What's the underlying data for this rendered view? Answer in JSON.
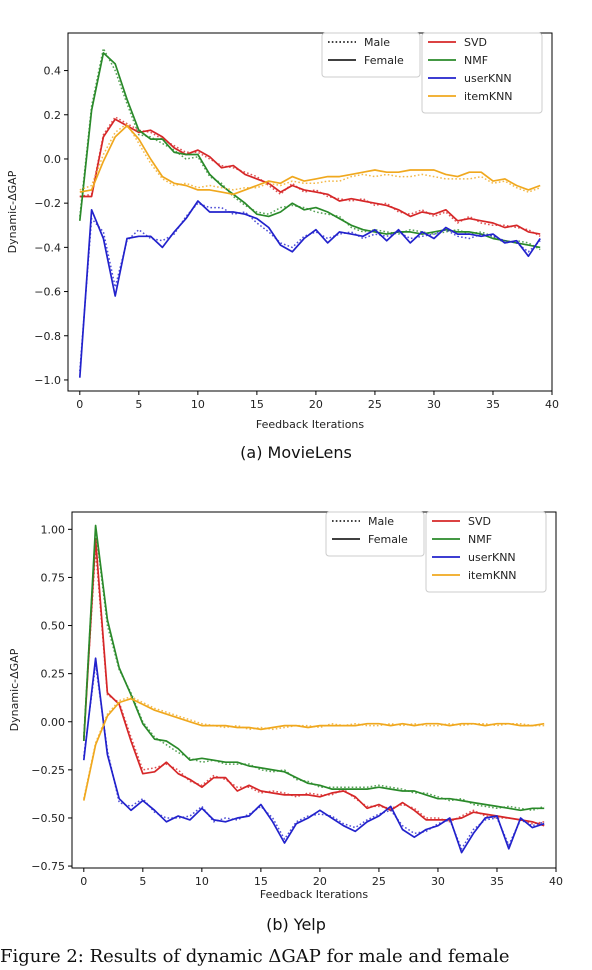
{
  "figure_caption": "Figure 2: Results of dynamic ΔGAP for male and female",
  "colors": {
    "SVD": "#d62728",
    "NMF": "#2a8a2a",
    "userKNN": "#2222cc",
    "itemKNN": "#f0a81e"
  },
  "legend": {
    "style": [
      {
        "name": "Male",
        "dash": "dotted"
      },
      {
        "name": "Female",
        "dash": "solid"
      }
    ],
    "models": [
      "SVD",
      "NMF",
      "userKNN",
      "itemKNN"
    ]
  },
  "chart_data": [
    {
      "type": "line",
      "caption": "(a) MovieLens",
      "xlabel": "Feedback Iterations",
      "ylabel": "Dynamic-ΔGAP",
      "xlim": [
        -1,
        40
      ],
      "ylim": [
        -1.05,
        0.57
      ],
      "xticks": [
        0,
        5,
        10,
        15,
        20,
        25,
        30,
        35,
        40
      ],
      "yticks": [
        -1.0,
        -0.8,
        -0.6,
        -0.4,
        -0.2,
        0.0,
        0.2,
        0.4
      ],
      "ytick_labels": [
        "−1.0",
        "−0.8",
        "−0.6",
        "−0.4",
        "−0.2",
        "0.0",
        "0.2",
        "0.4"
      ],
      "legend_placement": "top-right",
      "series": [
        {
          "name": "SVD",
          "sex": "Female",
          "values": [
            -0.17,
            -0.17,
            0.1,
            0.18,
            0.15,
            0.12,
            0.13,
            0.1,
            0.05,
            0.02,
            0.04,
            0.01,
            -0.04,
            -0.03,
            -0.07,
            -0.09,
            -0.11,
            -0.15,
            -0.12,
            -0.14,
            -0.15,
            -0.16,
            -0.19,
            -0.18,
            -0.19,
            -0.2,
            -0.21,
            -0.23,
            -0.26,
            -0.24,
            -0.25,
            -0.23,
            -0.28,
            -0.27,
            -0.28,
            -0.29,
            -0.31,
            -0.3,
            -0.33,
            -0.34
          ]
        },
        {
          "name": "SVD",
          "sex": "Male",
          "values": [
            -0.17,
            -0.16,
            0.11,
            0.19,
            0.16,
            0.13,
            0.12,
            0.09,
            0.06,
            0.03,
            0.03,
            0.0,
            -0.03,
            -0.04,
            -0.06,
            -0.08,
            -0.12,
            -0.16,
            -0.11,
            -0.15,
            -0.14,
            -0.17,
            -0.18,
            -0.19,
            -0.18,
            -0.21,
            -0.2,
            -0.24,
            -0.25,
            -0.23,
            -0.26,
            -0.24,
            -0.29,
            -0.26,
            -0.29,
            -0.3,
            -0.3,
            -0.31,
            -0.32,
            -0.35
          ]
        },
        {
          "name": "NMF",
          "sex": "Female",
          "values": [
            -0.28,
            0.22,
            0.48,
            0.43,
            0.27,
            0.13,
            0.09,
            0.09,
            0.03,
            0.02,
            0.02,
            -0.07,
            -0.12,
            -0.16,
            -0.2,
            -0.25,
            -0.26,
            -0.24,
            -0.2,
            -0.23,
            -0.22,
            -0.24,
            -0.27,
            -0.3,
            -0.32,
            -0.33,
            -0.34,
            -0.33,
            -0.33,
            -0.34,
            -0.33,
            -0.32,
            -0.33,
            -0.33,
            -0.34,
            -0.36,
            -0.37,
            -0.38,
            -0.39,
            -0.4
          ]
        },
        {
          "name": "NMF",
          "sex": "Male",
          "values": [
            -0.26,
            0.24,
            0.5,
            0.4,
            0.25,
            0.11,
            0.1,
            0.07,
            0.04,
            0.0,
            0.01,
            -0.08,
            -0.11,
            -0.17,
            -0.21,
            -0.24,
            -0.25,
            -0.22,
            -0.21,
            -0.22,
            -0.24,
            -0.25,
            -0.26,
            -0.31,
            -0.33,
            -0.32,
            -0.33,
            -0.34,
            -0.32,
            -0.33,
            -0.34,
            -0.33,
            -0.32,
            -0.34,
            -0.33,
            -0.35,
            -0.38,
            -0.37,
            -0.38,
            -0.41
          ]
        },
        {
          "name": "userKNN",
          "sex": "Female",
          "values": [
            -0.99,
            -0.23,
            -0.36,
            -0.62,
            -0.36,
            -0.35,
            -0.35,
            -0.4,
            -0.33,
            -0.27,
            -0.19,
            -0.24,
            -0.24,
            -0.24,
            -0.25,
            -0.27,
            -0.31,
            -0.39,
            -0.42,
            -0.36,
            -0.32,
            -0.38,
            -0.33,
            -0.34,
            -0.35,
            -0.32,
            -0.37,
            -0.32,
            -0.38,
            -0.33,
            -0.36,
            -0.31,
            -0.34,
            -0.34,
            -0.35,
            -0.34,
            -0.38,
            -0.37,
            -0.44,
            -0.36
          ]
        },
        {
          "name": "userKNN",
          "sex": "Male",
          "values": [
            -0.96,
            -0.27,
            -0.33,
            -0.58,
            -0.37,
            -0.32,
            -0.36,
            -0.37,
            -0.34,
            -0.26,
            -0.2,
            -0.22,
            -0.22,
            -0.25,
            -0.24,
            -0.29,
            -0.33,
            -0.38,
            -0.4,
            -0.35,
            -0.33,
            -0.36,
            -0.34,
            -0.33,
            -0.36,
            -0.34,
            -0.35,
            -0.33,
            -0.36,
            -0.35,
            -0.34,
            -0.32,
            -0.35,
            -0.36,
            -0.34,
            -0.35,
            -0.37,
            -0.38,
            -0.42,
            -0.37
          ]
        },
        {
          "name": "itemKNN",
          "sex": "Female",
          "values": [
            -0.15,
            -0.14,
            -0.01,
            0.1,
            0.15,
            0.09,
            0.0,
            -0.08,
            -0.11,
            -0.12,
            -0.14,
            -0.14,
            -0.15,
            -0.16,
            -0.14,
            -0.12,
            -0.1,
            -0.11,
            -0.08,
            -0.1,
            -0.09,
            -0.08,
            -0.08,
            -0.07,
            -0.06,
            -0.05,
            -0.06,
            -0.06,
            -0.05,
            -0.05,
            -0.05,
            -0.07,
            -0.08,
            -0.06,
            -0.06,
            -0.1,
            -0.09,
            -0.12,
            -0.14,
            -0.12
          ]
        },
        {
          "name": "itemKNN",
          "sex": "Male",
          "values": [
            -0.14,
            -0.12,
            0.02,
            0.12,
            0.16,
            0.07,
            -0.02,
            -0.09,
            -0.12,
            -0.11,
            -0.13,
            -0.12,
            -0.13,
            -0.14,
            -0.13,
            -0.13,
            -0.11,
            -0.12,
            -0.1,
            -0.11,
            -0.11,
            -0.1,
            -0.1,
            -0.08,
            -0.07,
            -0.08,
            -0.07,
            -0.08,
            -0.08,
            -0.07,
            -0.08,
            -0.09,
            -0.09,
            -0.09,
            -0.08,
            -0.11,
            -0.1,
            -0.13,
            -0.15,
            -0.13
          ]
        }
      ]
    },
    {
      "type": "line",
      "caption": "(b) Yelp",
      "xlabel": "Feedback Iterations",
      "ylabel": "Dynamic-ΔGAP",
      "xlim": [
        -1,
        40
      ],
      "ylim": [
        -0.76,
        1.09
      ],
      "xticks": [
        0,
        5,
        10,
        15,
        20,
        25,
        30,
        35,
        40
      ],
      "yticks": [
        -0.75,
        -0.5,
        -0.25,
        0.0,
        0.25,
        0.5,
        0.75,
        1.0
      ],
      "ytick_labels": [
        "−0.75",
        "−0.50",
        "−0.25",
        "0.00",
        "0.25",
        "0.50",
        "0.75",
        "1.00"
      ],
      "legend_placement": "top-right",
      "series": [
        {
          "name": "SVD",
          "sex": "Female",
          "values": [
            -0.1,
            0.95,
            0.15,
            0.09,
            -0.1,
            -0.27,
            -0.26,
            -0.21,
            -0.27,
            -0.3,
            -0.34,
            -0.29,
            -0.29,
            -0.36,
            -0.33,
            -0.36,
            -0.37,
            -0.38,
            -0.38,
            -0.38,
            -0.39,
            -0.37,
            -0.36,
            -0.39,
            -0.45,
            -0.43,
            -0.46,
            -0.42,
            -0.46,
            -0.51,
            -0.51,
            -0.51,
            -0.5,
            -0.47,
            -0.48,
            -0.49,
            -0.5,
            -0.51,
            -0.52,
            -0.54
          ]
        },
        {
          "name": "SVD",
          "sex": "Male",
          "values": [
            -0.08,
            0.9,
            0.14,
            0.1,
            -0.08,
            -0.25,
            -0.24,
            -0.22,
            -0.25,
            -0.31,
            -0.33,
            -0.28,
            -0.3,
            -0.34,
            -0.34,
            -0.37,
            -0.36,
            -0.37,
            -0.39,
            -0.37,
            -0.38,
            -0.38,
            -0.35,
            -0.4,
            -0.44,
            -0.44,
            -0.45,
            -0.43,
            -0.45,
            -0.5,
            -0.5,
            -0.52,
            -0.49,
            -0.46,
            -0.49,
            -0.5,
            -0.5,
            -0.51,
            -0.53,
            -0.52
          ]
        },
        {
          "name": "NMF",
          "sex": "Female",
          "values": [
            -0.1,
            1.02,
            0.53,
            0.28,
            0.14,
            -0.01,
            -0.09,
            -0.1,
            -0.14,
            -0.2,
            -0.19,
            -0.2,
            -0.21,
            -0.21,
            -0.23,
            -0.24,
            -0.25,
            -0.26,
            -0.29,
            -0.32,
            -0.33,
            -0.35,
            -0.35,
            -0.35,
            -0.35,
            -0.34,
            -0.35,
            -0.36,
            -0.36,
            -0.38,
            -0.4,
            -0.4,
            -0.41,
            -0.42,
            -0.43,
            -0.44,
            -0.45,
            -0.46,
            -0.45,
            -0.45
          ]
        },
        {
          "name": "NMF",
          "sex": "Male",
          "values": [
            -0.08,
            1.0,
            0.5,
            0.27,
            0.15,
            0.0,
            -0.08,
            -0.12,
            -0.16,
            -0.19,
            -0.21,
            -0.2,
            -0.22,
            -0.22,
            -0.22,
            -0.25,
            -0.26,
            -0.25,
            -0.3,
            -0.31,
            -0.34,
            -0.34,
            -0.34,
            -0.34,
            -0.34,
            -0.33,
            -0.34,
            -0.35,
            -0.37,
            -0.37,
            -0.39,
            -0.41,
            -0.4,
            -0.43,
            -0.44,
            -0.45,
            -0.44,
            -0.45,
            -0.46,
            -0.44
          ]
        },
        {
          "name": "userKNN",
          "sex": "Female",
          "values": [
            -0.2,
            0.33,
            -0.17,
            -0.4,
            -0.46,
            -0.41,
            -0.46,
            -0.52,
            -0.49,
            -0.51,
            -0.45,
            -0.51,
            -0.52,
            -0.5,
            -0.49,
            -0.43,
            -0.52,
            -0.63,
            -0.53,
            -0.5,
            -0.46,
            -0.5,
            -0.54,
            -0.57,
            -0.52,
            -0.49,
            -0.44,
            -0.56,
            -0.6,
            -0.56,
            -0.54,
            -0.5,
            -0.68,
            -0.58,
            -0.5,
            -0.49,
            -0.66,
            -0.5,
            -0.55,
            -0.53
          ]
        },
        {
          "name": "userKNN",
          "sex": "Male",
          "values": [
            -0.18,
            0.3,
            -0.15,
            -0.42,
            -0.44,
            -0.4,
            -0.47,
            -0.5,
            -0.5,
            -0.49,
            -0.44,
            -0.52,
            -0.5,
            -0.51,
            -0.48,
            -0.44,
            -0.5,
            -0.61,
            -0.52,
            -0.49,
            -0.48,
            -0.49,
            -0.53,
            -0.55,
            -0.51,
            -0.48,
            -0.46,
            -0.54,
            -0.58,
            -0.57,
            -0.53,
            -0.51,
            -0.66,
            -0.56,
            -0.51,
            -0.5,
            -0.64,
            -0.51,
            -0.54,
            -0.52
          ]
        },
        {
          "name": "itemKNN",
          "sex": "Female",
          "values": [
            -0.41,
            -0.12,
            0.03,
            0.1,
            0.12,
            0.09,
            0.06,
            0.04,
            0.02,
            0.0,
            -0.02,
            -0.02,
            -0.02,
            -0.03,
            -0.03,
            -0.04,
            -0.03,
            -0.02,
            -0.02,
            -0.03,
            -0.02,
            -0.02,
            -0.02,
            -0.02,
            -0.01,
            -0.01,
            -0.02,
            -0.01,
            -0.02,
            -0.01,
            -0.01,
            -0.02,
            -0.01,
            -0.01,
            -0.02,
            -0.01,
            -0.01,
            -0.02,
            -0.02,
            -0.01
          ]
        },
        {
          "name": "itemKNN",
          "sex": "Male",
          "values": [
            -0.4,
            -0.11,
            0.04,
            0.11,
            0.13,
            0.1,
            0.07,
            0.05,
            0.03,
            0.01,
            -0.01,
            -0.02,
            -0.03,
            -0.02,
            -0.04,
            -0.03,
            -0.04,
            -0.03,
            -0.02,
            -0.02,
            -0.03,
            -0.01,
            -0.02,
            -0.01,
            -0.02,
            -0.02,
            -0.01,
            -0.02,
            -0.01,
            -0.02,
            -0.02,
            -0.01,
            -0.02,
            -0.01,
            -0.01,
            -0.02,
            -0.01,
            -0.01,
            -0.02,
            -0.02
          ]
        }
      ]
    }
  ]
}
